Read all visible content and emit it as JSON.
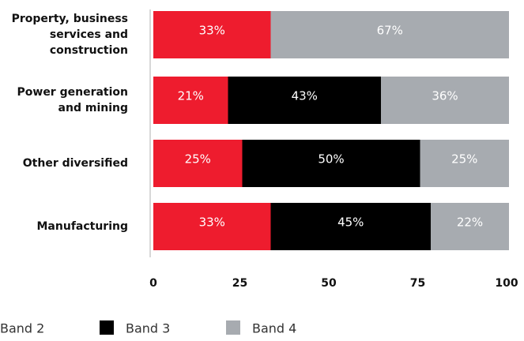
{
  "chart_data": {
    "type": "bar",
    "orientation": "horizontal",
    "stacked": true,
    "categories": [
      [
        "Property, business",
        "services and",
        "construction"
      ],
      [
        "Power generation",
        "and mining"
      ],
      [
        "Other diversified"
      ],
      [
        "Manufacturing"
      ]
    ],
    "series": [
      {
        "name": "Band 2",
        "color": "#ee1c2e",
        "values": [
          33,
          21,
          25,
          33
        ],
        "labels": [
          "33%",
          "21%",
          "25%",
          "33%"
        ]
      },
      {
        "name": "Band 3",
        "color": "#000000",
        "values": [
          0,
          43,
          50,
          45
        ],
        "labels": [
          "",
          "43%",
          "50%",
          "45%"
        ]
      },
      {
        "name": "Band 4",
        "color": "#a7abb0",
        "values": [
          67,
          36,
          25,
          22
        ],
        "labels": [
          "67%",
          "36%",
          "25%",
          "22%"
        ]
      }
    ],
    "xlim": [
      0,
      100
    ],
    "xticks": [
      0,
      25,
      50,
      75,
      100
    ],
    "xtick_labels": [
      "0",
      "25",
      "50",
      "75",
      "100"
    ],
    "grid": false,
    "legend_position": "bottom-left"
  }
}
